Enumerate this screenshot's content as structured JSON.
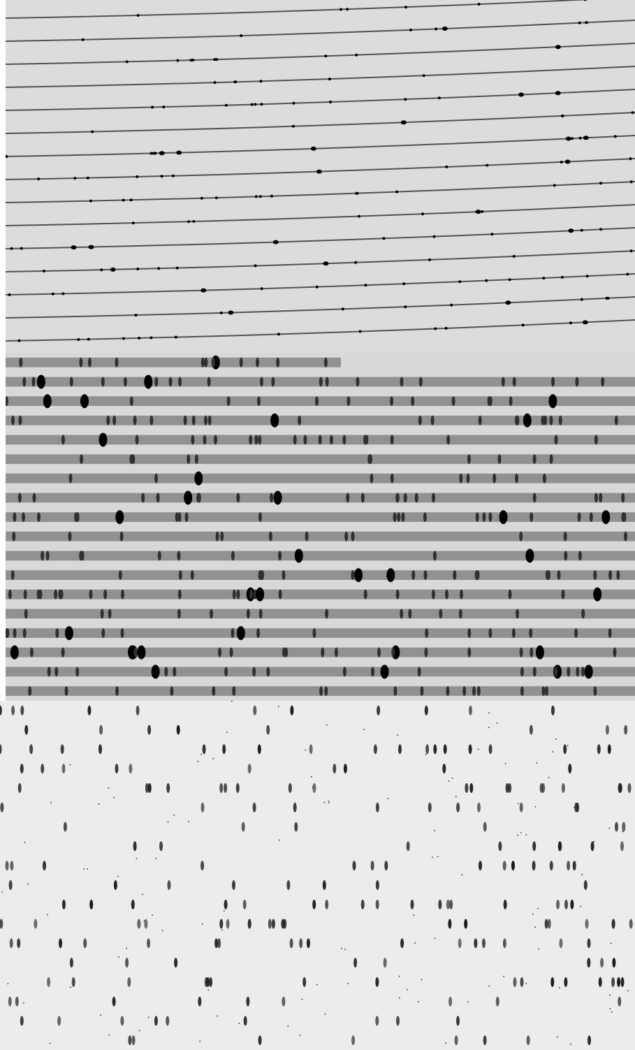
{
  "figure": {
    "panels": [
      {
        "id": "raw-echelle-frame",
        "description_type": "curved spectral orders",
        "order_count": 15
      },
      {
        "id": "rectified-orders",
        "description_type": "straightened spectral orders",
        "order_count": 18
      },
      {
        "id": "sky-subtracted-orders",
        "description_type": "background-subtracted emission lines",
        "order_count": 18
      }
    ],
    "colors": {
      "raw_background": "#dcdcdc",
      "rectified_background": "#d8d8d8",
      "sky_background": "#ececec",
      "trace": "#3a3a3a",
      "emission": "#000000"
    }
  }
}
